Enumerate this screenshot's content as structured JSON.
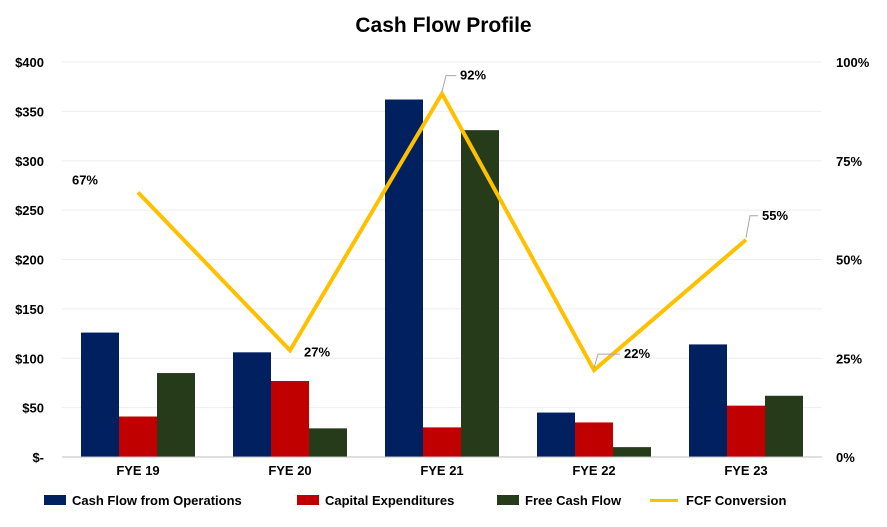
{
  "chart_data": {
    "type": "bar",
    "title": "Cash Flow Profile",
    "categories": [
      "FYE 19",
      "FYE 20",
      "FYE 21",
      "FYE 22",
      "FYE 23"
    ],
    "series": [
      {
        "name": "Cash Flow from Operations",
        "kind": "bar",
        "axis": "left",
        "color": "#002060",
        "values": [
          126,
          106,
          362,
          45,
          114
        ]
      },
      {
        "name": "Capital Expenditures",
        "kind": "bar",
        "axis": "left",
        "color": "#C00000",
        "values": [
          41,
          77,
          30,
          35,
          52
        ]
      },
      {
        "name": "Free Cash Flow",
        "kind": "bar",
        "axis": "left",
        "color": "#263B1A",
        "values": [
          85,
          29,
          331,
          10,
          62
        ]
      },
      {
        "name": "FCF Conversion",
        "kind": "line",
        "axis": "right",
        "color": "#FFC000",
        "values": [
          67,
          27,
          92,
          22,
          55
        ],
        "labels": [
          "67%",
          "27%",
          "92%",
          "22%",
          "55%"
        ]
      }
    ],
    "y_left": {
      "min": 0,
      "max": 400,
      "ticks": [
        0,
        50,
        100,
        150,
        200,
        250,
        300,
        350,
        400
      ],
      "tick_labels": [
        "$-",
        "$50",
        "$100",
        "$150",
        "$200",
        "$250",
        "$300",
        "$350",
        "$400"
      ]
    },
    "y_right": {
      "min": 0,
      "max": 100,
      "ticks": [
        0,
        25,
        50,
        75,
        100
      ],
      "tick_labels": [
        "0%",
        "25%",
        "50%",
        "75%",
        "100%"
      ]
    },
    "grid": true,
    "legend_position": "bottom"
  }
}
